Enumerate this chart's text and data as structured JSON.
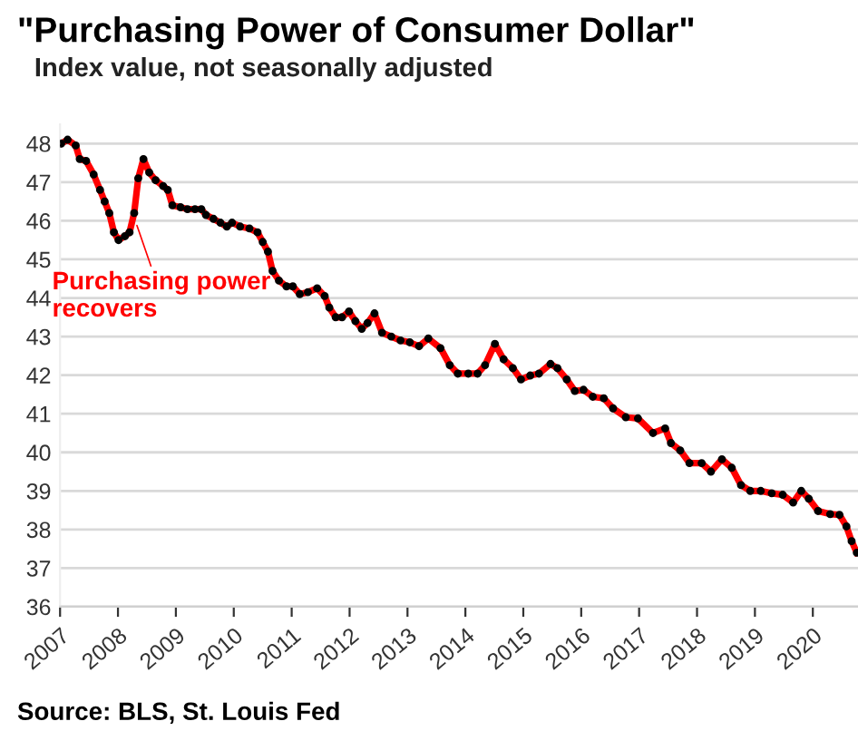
{
  "chart_data": {
    "type": "line",
    "title": "\"Purchasing Power of Consumer Dollar\"",
    "subtitle": "Index value, not seasonally adjusted",
    "annotations": [
      {
        "text": "Purchasing power\nrecovers",
        "x": 2008.3,
        "y": 46.0
      },
      "Source: BLS, St. Louis Fed"
    ],
    "series": [
      {
        "color": "#ff0000",
        "x": [
          2007.02,
          2007.13,
          2007.27,
          2007.34,
          2007.45,
          2007.58,
          2007.69,
          2007.77,
          2007.85,
          2007.93,
          2008.01,
          2008.12,
          2008.2,
          2008.28,
          2008.35,
          2008.44,
          2008.54,
          2008.65,
          2008.78,
          2008.86,
          2008.94,
          2009.08,
          2009.2,
          2009.33,
          2009.44,
          2009.52,
          2009.65,
          2009.77,
          2009.88,
          2009.97,
          2010.11,
          2010.27,
          2010.41,
          2010.5,
          2010.59,
          2010.67,
          2010.78,
          2010.91,
          2011.02,
          2011.14,
          2011.28,
          2011.44,
          2011.57,
          2011.65,
          2011.76,
          2011.87,
          2011.99,
          2012.1,
          2012.21,
          2012.31,
          2012.43,
          2012.56,
          2012.72,
          2012.88,
          2013.04,
          2013.2,
          2013.36,
          2013.57,
          2013.73,
          2013.87,
          2014.05,
          2014.21,
          2014.34,
          2014.51,
          2014.66,
          2014.82,
          2014.96,
          2015.12,
          2015.27,
          2015.47,
          2015.59,
          2015.75,
          2015.89,
          2016.04,
          2016.2,
          2016.39,
          2016.55,
          2016.77,
          2016.98,
          2017.24,
          2017.45,
          2017.55,
          2017.71,
          2017.87,
          2018.08,
          2018.24,
          2018.43,
          2018.6,
          2018.76,
          2018.92,
          2019.1,
          2019.29,
          2019.48,
          2019.66,
          2019.8,
          2019.93,
          2020.09,
          2020.3,
          2020.46,
          2020.58,
          2020.67,
          2020.76
        ],
        "values": [
          48.0,
          48.1,
          47.95,
          47.6,
          47.55,
          47.2,
          46.8,
          46.5,
          46.2,
          45.7,
          45.5,
          45.6,
          45.7,
          46.2,
          47.1,
          47.6,
          47.25,
          47.05,
          46.9,
          46.8,
          46.4,
          46.35,
          46.3,
          46.3,
          46.3,
          46.15,
          46.05,
          45.95,
          45.85,
          45.95,
          45.85,
          45.8,
          45.7,
          45.45,
          45.2,
          44.7,
          44.45,
          44.3,
          44.3,
          44.1,
          44.15,
          44.25,
          44.05,
          43.75,
          43.5,
          43.5,
          43.65,
          43.4,
          43.2,
          43.35,
          43.6,
          43.1,
          43.0,
          42.9,
          42.85,
          42.75,
          42.95,
          42.7,
          42.26,
          42.04,
          42.04,
          42.04,
          42.26,
          42.81,
          42.41,
          42.18,
          41.89,
          41.99,
          42.04,
          42.29,
          42.18,
          41.89,
          41.59,
          41.62,
          41.44,
          41.4,
          41.14,
          40.91,
          40.88,
          40.5,
          40.62,
          40.24,
          40.05,
          39.72,
          39.72,
          39.5,
          39.82,
          39.6,
          39.15,
          39.0,
          39.0,
          38.94,
          38.9,
          38.7,
          39.0,
          38.8,
          38.48,
          38.4,
          38.38,
          38.08,
          37.7,
          37.4
        ]
      }
    ],
    "xlim": [
      2007,
      2020.78
    ],
    "xticks": [
      2007,
      2008,
      2009,
      2010,
      2011,
      2012,
      2013,
      2014,
      2015,
      2016,
      2017,
      2018,
      2019,
      2020
    ],
    "ylim": [
      36,
      48.5
    ],
    "yticks": [
      36,
      37,
      38,
      39,
      40,
      41,
      42,
      43,
      44,
      45,
      46,
      47,
      48
    ],
    "grid": "y",
    "legend": false,
    "marker": "circle",
    "line_style": "solid"
  }
}
